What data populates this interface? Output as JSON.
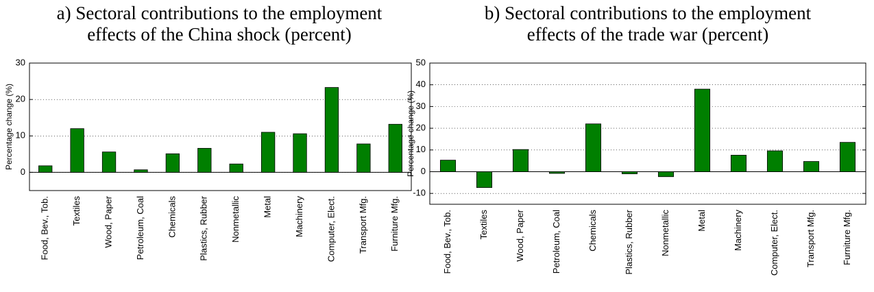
{
  "chart_data": [
    {
      "type": "bar",
      "title": [
        "a) Sectoral contributions to the employment",
        "effects of the China shock (percent)"
      ],
      "y_label": "Percentage change (%)",
      "categories": [
        "Food, Bev., Tob.",
        "Textiles",
        "Wood, Paper",
        "Petroleum, Coal",
        "Chemicals",
        "Plastics, Rubber",
        "Nonmetallic",
        "Metal",
        "Machinery",
        "Computer, Elect.",
        "Transport Mfg.",
        "Furniture Mfg."
      ],
      "values": [
        1.8,
        12,
        5.6,
        0.7,
        5.1,
        6.6,
        2.3,
        11,
        10.6,
        23.3,
        7.8,
        13.2
      ],
      "color": "#007f00",
      "ylim": [
        -5,
        30
      ],
      "yticks": [
        0,
        10,
        20,
        30
      ],
      "grid": true
    },
    {
      "type": "bar",
      "title": [
        "b) Sectoral contributions to the employment",
        "effects of the trade war (percent)"
      ],
      "y_label": "Percentage change (%)",
      "categories": [
        "Food, Bev., Tob.",
        "Textiles",
        "Wood, Paper",
        "Petroleum, Coal",
        "Chemicals",
        "Plastics, Rubber",
        "Nonmetallic",
        "Metal",
        "Machinery",
        "Computer, Elect.",
        "Transport Mfg.",
        "Furniture Mfg."
      ],
      "values": [
        5.3,
        -7.3,
        10.2,
        -0.8,
        22,
        -1,
        -2.3,
        38,
        7.6,
        9.6,
        4.7,
        13.5
      ],
      "color": "#007f00",
      "ylim": [
        -15,
        50
      ],
      "yticks": [
        -10,
        0,
        10,
        20,
        30,
        40,
        50
      ],
      "grid": true
    }
  ]
}
